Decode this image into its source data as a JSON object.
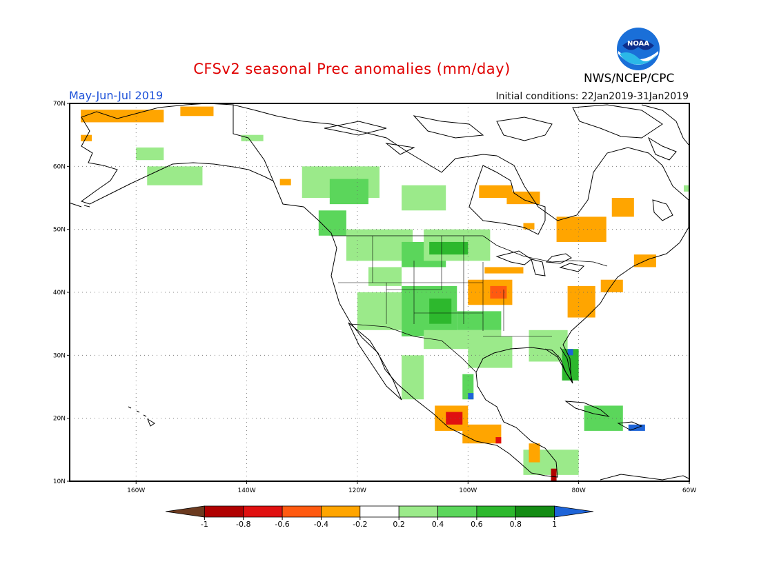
{
  "title": "CFSv2 seasonal Prec anomalies (mm/day)",
  "period": "May-Jun-Jul 2019",
  "initial_conditions": "Initial conditions: 22Jan2019-31Jan2019",
  "agency": "NWS/NCEP/CPC",
  "logo_text": "NOAA",
  "map": {
    "lon_range": [
      -172,
      -60
    ],
    "lat_range": [
      10,
      70
    ],
    "lon_ticks": [
      {
        "value": -160,
        "label": "160W"
      },
      {
        "value": -140,
        "label": "140W"
      },
      {
        "value": -120,
        "label": "120W"
      },
      {
        "value": -100,
        "label": "100W"
      },
      {
        "value": -80,
        "label": "80W"
      },
      {
        "value": -60,
        "label": "60W"
      }
    ],
    "lat_ticks": [
      {
        "value": 10,
        "label": "10N"
      },
      {
        "value": 20,
        "label": "20N"
      },
      {
        "value": 30,
        "label": "30N"
      },
      {
        "value": 40,
        "label": "40N"
      },
      {
        "value": 50,
        "label": "50N"
      },
      {
        "value": 60,
        "label": "60N"
      },
      {
        "value": 70,
        "label": "70N"
      }
    ],
    "grid": true
  },
  "colorbar": {
    "labels": [
      "-1",
      "-0.8",
      "-0.6",
      "-0.4",
      "-0.2",
      "0.2",
      "0.4",
      "0.6",
      "0.8",
      "1"
    ],
    "colors": [
      "#6b3a1f",
      "#b00000",
      "#e01010",
      "#ff5a10",
      "#ffa500",
      "#ffffff",
      "#9bea8a",
      "#5bd65b",
      "#2db82d",
      "#148c14",
      "#1e64d8"
    ]
  },
  "chart_data": {
    "type": "heatmap",
    "variable": "Prec anomalies (mm/day)",
    "x_axis": "longitude",
    "y_axis": "latitude",
    "xlim": [
      -172,
      -60
    ],
    "ylim": [
      10,
      70
    ],
    "levels": [
      -1,
      -0.8,
      -0.6,
      -0.4,
      -0.2,
      0.2,
      0.4,
      0.6,
      0.8,
      1
    ],
    "regions": [
      {
        "lon": [
          -170,
          -155
        ],
        "lat": [
          67,
          69
        ],
        "value": -0.3
      },
      {
        "lon": [
          -152,
          -146
        ],
        "lat": [
          68,
          69.5
        ],
        "value": -0.3
      },
      {
        "lon": [
          -170,
          -168
        ],
        "lat": [
          64,
          65
        ],
        "value": -0.3
      },
      {
        "lon": [
          -158,
          -148
        ],
        "lat": [
          57,
          60
        ],
        "value": 0.3
      },
      {
        "lon": [
          -160,
          -155
        ],
        "lat": [
          61,
          63
        ],
        "value": 0.3
      },
      {
        "lon": [
          -141,
          -137
        ],
        "lat": [
          64,
          65
        ],
        "value": 0.3
      },
      {
        "lon": [
          -134,
          -132
        ],
        "lat": [
          57,
          58
        ],
        "value": -0.4
      },
      {
        "lon": [
          -130,
          -116
        ],
        "lat": [
          55,
          60
        ],
        "value": 0.3
      },
      {
        "lon": [
          -125,
          -118
        ],
        "lat": [
          54,
          58
        ],
        "value": 0.5
      },
      {
        "lon": [
          -112,
          -104
        ],
        "lat": [
          53,
          57
        ],
        "value": 0.3
      },
      {
        "lon": [
          -127,
          -122
        ],
        "lat": [
          49,
          53
        ],
        "value": 0.4
      },
      {
        "lon": [
          -122,
          -110
        ],
        "lat": [
          45,
          50
        ],
        "value": 0.3
      },
      {
        "lon": [
          -112,
          -104
        ],
        "lat": [
          44,
          48
        ],
        "value": 0.4
      },
      {
        "lon": [
          -108,
          -96
        ],
        "lat": [
          45,
          50
        ],
        "value": 0.3
      },
      {
        "lon": [
          -118,
          -112
        ],
        "lat": [
          41,
          44
        ],
        "value": 0.3
      },
      {
        "lon": [
          -120,
          -112
        ],
        "lat": [
          34,
          40
        ],
        "value": 0.3
      },
      {
        "lon": [
          -112,
          -102
        ],
        "lat": [
          33,
          41
        ],
        "value": 0.4
      },
      {
        "lon": [
          -107,
          -103
        ],
        "lat": [
          35,
          39
        ],
        "value": 0.6
      },
      {
        "lon": [
          -108,
          -94
        ],
        "lat": [
          31,
          34
        ],
        "value": 0.3
      },
      {
        "lon": [
          -102,
          -94
        ],
        "lat": [
          34,
          37
        ],
        "value": 0.5
      },
      {
        "lon": [
          -100,
          -92
        ],
        "lat": [
          28,
          33
        ],
        "value": 0.3
      },
      {
        "lon": [
          -112,
          -108
        ],
        "lat": [
          23,
          30
        ],
        "value": 0.3
      },
      {
        "lon": [
          -101,
          -99
        ],
        "lat": [
          23,
          27
        ],
        "value": 0.5
      },
      {
        "lon": [
          -100,
          -99
        ],
        "lat": [
          23,
          24
        ],
        "value": 1.0
      },
      {
        "lon": [
          -89,
          -82
        ],
        "lat": [
          29,
          34
        ],
        "value": 0.3
      },
      {
        "lon": [
          -83,
          -80
        ],
        "lat": [
          26,
          31
        ],
        "value": 0.6
      },
      {
        "lon": [
          -82,
          -81
        ],
        "lat": [
          30,
          31
        ],
        "value": 1.0
      },
      {
        "lon": [
          -79,
          -72
        ],
        "lat": [
          18,
          22
        ],
        "value": 0.4
      },
      {
        "lon": [
          -71,
          -68
        ],
        "lat": [
          18,
          19
        ],
        "value": 1.0
      },
      {
        "lon": [
          -90,
          -80
        ],
        "lat": [
          11,
          15
        ],
        "value": 0.3
      },
      {
        "lon": [
          -107,
          -100
        ],
        "lat": [
          46,
          48
        ],
        "value": 0.6
      },
      {
        "lon": [
          -61,
          -59
        ],
        "lat": [
          56,
          57
        ],
        "value": 0.3
      },
      {
        "lon": [
          -98,
          -92
        ],
        "lat": [
          55,
          57
        ],
        "value": -0.3
      },
      {
        "lon": [
          -93,
          -87
        ],
        "lat": [
          54,
          56
        ],
        "value": -0.3
      },
      {
        "lon": [
          -74,
          -70
        ],
        "lat": [
          52,
          55
        ],
        "value": -0.3
      },
      {
        "lon": [
          -84,
          -75
        ],
        "lat": [
          48,
          52
        ],
        "value": -0.3
      },
      {
        "lon": [
          -90,
          -88
        ],
        "lat": [
          50,
          51
        ],
        "value": -0.3
      },
      {
        "lon": [
          -97,
          -90
        ],
        "lat": [
          43,
          44
        ],
        "value": -0.3
      },
      {
        "lon": [
          -100,
          -92
        ],
        "lat": [
          38,
          42
        ],
        "value": -0.3
      },
      {
        "lon": [
          -96,
          -93
        ],
        "lat": [
          39,
          41
        ],
        "value": -0.5
      },
      {
        "lon": [
          -82,
          -77
        ],
        "lat": [
          36,
          41
        ],
        "value": -0.3
      },
      {
        "lon": [
          -76,
          -72
        ],
        "lat": [
          40,
          42
        ],
        "value": -0.4
      },
      {
        "lon": [
          -70,
          -66
        ],
        "lat": [
          44,
          46
        ],
        "value": -0.3
      },
      {
        "lon": [
          -106,
          -100
        ],
        "lat": [
          18,
          22
        ],
        "value": -0.4
      },
      {
        "lon": [
          -104,
          -101
        ],
        "lat": [
          19,
          21
        ],
        "value": -0.8
      },
      {
        "lon": [
          -101,
          -94
        ],
        "lat": [
          16,
          19
        ],
        "value": -0.4
      },
      {
        "lon": [
          -89,
          -87
        ],
        "lat": [
          13,
          16
        ],
        "value": -0.3
      },
      {
        "lon": [
          -85,
          -84
        ],
        "lat": [
          10,
          12
        ],
        "value": -0.9
      },
      {
        "lon": [
          -95,
          -94
        ],
        "lat": [
          16,
          17
        ],
        "value": -0.8
      }
    ]
  }
}
